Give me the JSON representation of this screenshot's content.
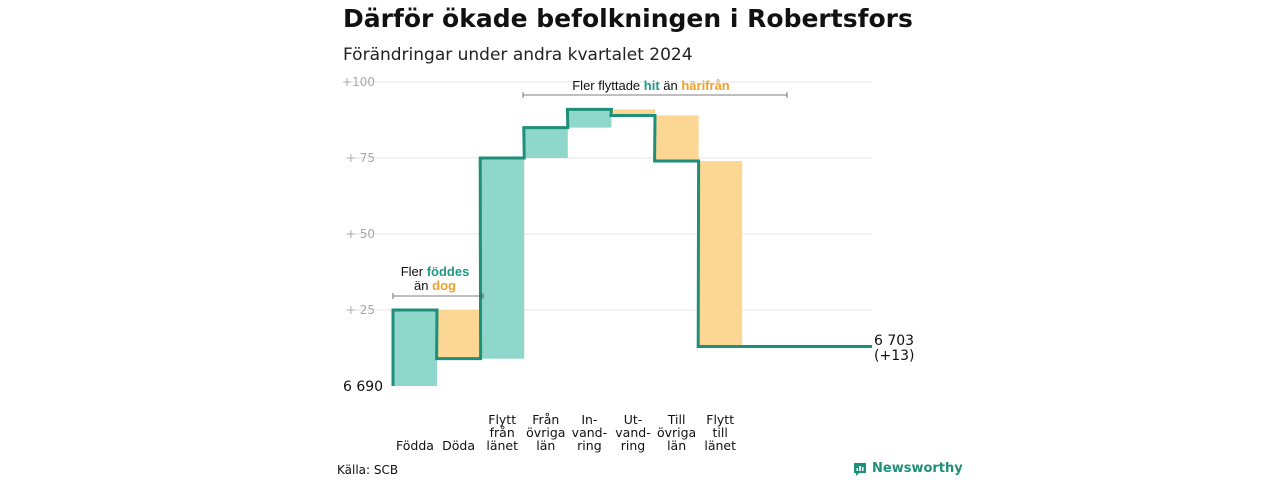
{
  "title": "Därför ökade befolkningen i Robertsfors",
  "subtitle": "Förändringar under andra kvartalet 2024",
  "source": "Källa: SCB",
  "brand": "Newsworthy",
  "colors": {
    "positive": "#8fd6cb",
    "negative": "#fcd793",
    "line": "#1e8f78",
    "accent_text": "#1e9a84",
    "accent_orange": "#f0a12a",
    "grid": "#e4e4e4"
  },
  "chart_data": {
    "type": "waterfall",
    "title": "Därför ökade befolkningen i Robertsfors",
    "subtitle": "Förändringar under andra kvartalet 2024",
    "start_value": 6690,
    "start_label": "6 690",
    "end_label": [
      "6 703",
      "(+13)"
    ],
    "y_ticks": [
      "+100",
      "+  75",
      "+  50",
      "+  25"
    ],
    "y_tick_values": [
      100,
      75,
      50,
      25
    ],
    "ylim": [
      0,
      100
    ],
    "grid": true,
    "steps": [
      {
        "category": [
          "Födda"
        ],
        "delta": 25
      },
      {
        "category": [
          "Döda"
        ],
        "delta": -16
      },
      {
        "category": [
          "Flytt",
          "från",
          "länet"
        ],
        "delta": 66
      },
      {
        "category": [
          "Från",
          "övriga",
          "län"
        ],
        "delta": 10
      },
      {
        "category": [
          "In-",
          "vand-",
          "ring"
        ],
        "delta": 6
      },
      {
        "category": [
          "Ut-",
          "vand-",
          "ring"
        ],
        "delta": -2
      },
      {
        "category": [
          "Till",
          "övriga",
          "län"
        ],
        "delta": -15
      },
      {
        "category": [
          "Flytt",
          "till",
          "länet"
        ],
        "delta": -61
      }
    ],
    "annotations": {
      "births": {
        "line1": [
          "Fler ",
          "föddes"
        ],
        "line2": [
          "än ",
          "dog"
        ]
      },
      "moves": {
        "parts": [
          "Fler flyttade ",
          "hit",
          " än ",
          "härifrån"
        ]
      }
    }
  }
}
